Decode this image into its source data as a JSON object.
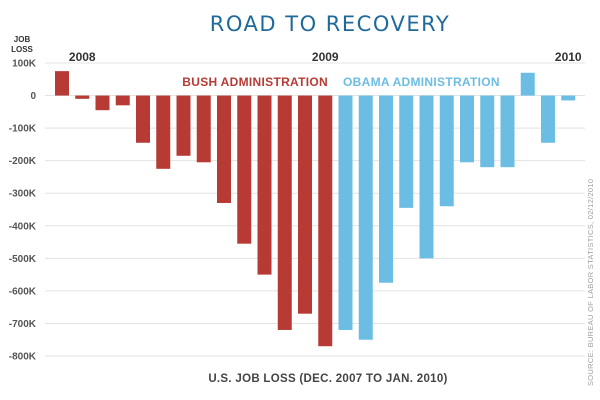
{
  "chart_data": {
    "type": "bar",
    "title": "ROAD TO RECOVERY",
    "ylabel_line1": "JOB",
    "ylabel_line2": "LOSS",
    "xlabel": "U.S. JOB LOSS (DEC. 2007 TO JAN. 2010)",
    "source": "SOURCE: BUREAU OF LABOR STATISTICS, 02/12/2010",
    "year_labels": [
      {
        "label": "2008",
        "at_index": 1
      },
      {
        "label": "2009",
        "at_index": 13
      },
      {
        "label": "2010",
        "at_index": 25
      }
    ],
    "annotations": [
      {
        "text": "BUSH ADMINISTRATION",
        "color": "#b73a34"
      },
      {
        "text": "OBAMA ADMINISTRATION",
        "color": "#6bbde3"
      }
    ],
    "ylim": [
      -800000,
      100000
    ],
    "yticks": [
      100000,
      0,
      -100000,
      -200000,
      -300000,
      -400000,
      -500000,
      -600000,
      -700000,
      -800000
    ],
    "ytick_labels": [
      "100K",
      "0",
      "-100K",
      "-200K",
      "-300K",
      "-400K",
      "-500K",
      "-600K",
      "-700K",
      "-800K"
    ],
    "grid": true,
    "colors": {
      "bush": "#b73a34",
      "obama": "#6bbde3",
      "title": "#1f6a9a",
      "grid": "#e3e3e3"
    },
    "series": [
      {
        "values": [
          75000,
          -10000,
          -45000,
          -30000,
          -145000,
          -225000,
          -185000,
          -205000,
          -330000,
          -455000,
          -550000,
          -720000,
          -670000,
          -770000,
          -720000,
          -750000,
          -575000,
          -345000,
          -500000,
          -340000,
          -205000,
          -220000,
          -220000,
          70000,
          -145000,
          -15000
        ],
        "admin": [
          "bush",
          "bush",
          "bush",
          "bush",
          "bush",
          "bush",
          "bush",
          "bush",
          "bush",
          "bush",
          "bush",
          "bush",
          "bush",
          "bush",
          "obama",
          "obama",
          "obama",
          "obama",
          "obama",
          "obama",
          "obama",
          "obama",
          "obama",
          "obama",
          "obama",
          "obama"
        ]
      }
    ]
  }
}
